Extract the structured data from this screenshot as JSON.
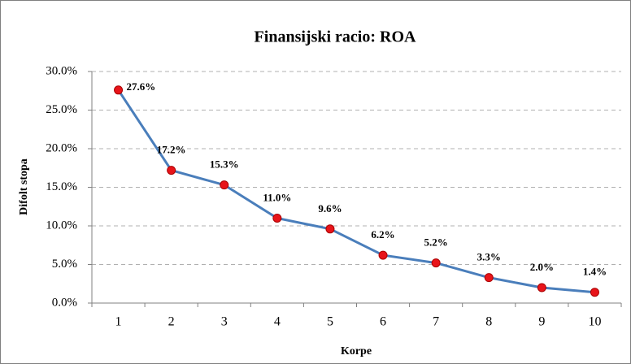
{
  "chart_data": {
    "type": "line",
    "title": "Finansijski racio: ROA",
    "x_label": "Korpe",
    "y_label": "Difolt stopa",
    "categories": [
      "1",
      "2",
      "3",
      "4",
      "5",
      "6",
      "7",
      "8",
      "9",
      "10"
    ],
    "series": [
      {
        "name": "ROA",
        "color": "#4a7ebb",
        "marker_color": "#e8141a",
        "values": [
          27.6,
          17.2,
          15.3,
          11.0,
          9.6,
          6.2,
          5.2,
          3.3,
          2.0,
          1.4
        ],
        "value_labels": [
          "27.6%",
          "17.2%",
          "15.3%",
          "11.0%",
          "9.6%",
          "6.2%",
          "5.2%",
          "3.3%",
          "2.0%",
          "1.4%"
        ]
      }
    ],
    "ylim": [
      0,
      30
    ],
    "yticks": [
      {
        "value": 0,
        "label": "0.0%"
      },
      {
        "value": 5,
        "label": "5.0%"
      },
      {
        "value": 10,
        "label": "10.0%"
      },
      {
        "value": 15,
        "label": "15.0%"
      },
      {
        "value": 20,
        "label": "20.0%"
      },
      {
        "value": 25,
        "label": "25.0%"
      },
      {
        "value": 30,
        "label": "30.0%"
      }
    ],
    "grid": true
  }
}
